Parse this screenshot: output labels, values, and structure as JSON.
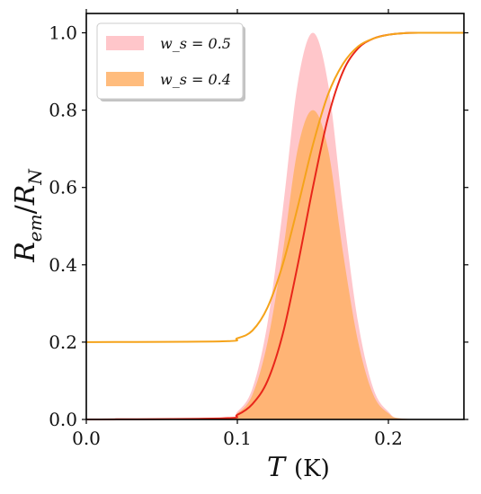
{
  "chart_data": {
    "type": "area",
    "xlabel": "T (K)",
    "ylabel": "R_em/R_N",
    "xlim": [
      0.0,
      0.25
    ],
    "ylim": [
      0.0,
      1.05
    ],
    "x_ticks": [
      "0.0",
      "0.1",
      "0.2"
    ],
    "y_ticks": [
      "0.0",
      "0.2",
      "0.4",
      "0.6",
      "0.8",
      "1.0"
    ],
    "grid": false,
    "legend_position": "top-left",
    "series": [
      {
        "name": "w_s = 0.5",
        "kind": "area",
        "color": "#ffb3b8",
        "x": [
          0.0,
          0.09,
          0.1,
          0.11,
          0.12,
          0.13,
          0.14,
          0.15,
          0.16,
          0.17,
          0.18,
          0.19,
          0.2,
          0.21,
          0.25
        ],
        "values": [
          0.0,
          0.002,
          0.02,
          0.08,
          0.25,
          0.54,
          0.87,
          1.0,
          0.87,
          0.54,
          0.25,
          0.08,
          0.02,
          0.002,
          0.0
        ]
      },
      {
        "name": "w_s = 0.4",
        "kind": "area",
        "color": "#ffb066",
        "x": [
          0.0,
          0.09,
          0.1,
          0.11,
          0.12,
          0.13,
          0.14,
          0.15,
          0.16,
          0.17,
          0.18,
          0.19,
          0.2,
          0.21,
          0.25
        ],
        "values": [
          0.0,
          0.002,
          0.016,
          0.064,
          0.2,
          0.43,
          0.7,
          0.8,
          0.7,
          0.43,
          0.2,
          0.064,
          0.016,
          0.002,
          0.0
        ]
      },
      {
        "kind": "line",
        "color": "#e8261a",
        "x": [
          0.0,
          0.09,
          0.1,
          0.11,
          0.12,
          0.13,
          0.14,
          0.15,
          0.16,
          0.17,
          0.18,
          0.19,
          0.2,
          0.21,
          0.22,
          0.25
        ],
        "values": [
          0.0,
          0.003,
          0.012,
          0.04,
          0.1,
          0.22,
          0.4,
          0.6,
          0.78,
          0.9,
          0.96,
          0.985,
          0.995,
          0.999,
          1.0,
          1.0
        ]
      },
      {
        "kind": "line",
        "color": "#f5a31a",
        "x": [
          0.0,
          0.09,
          0.1,
          0.11,
          0.12,
          0.13,
          0.14,
          0.15,
          0.16,
          0.17,
          0.18,
          0.19,
          0.2,
          0.21,
          0.22,
          0.25
        ],
        "values": [
          0.2,
          0.202,
          0.21,
          0.23,
          0.29,
          0.4,
          0.55,
          0.71,
          0.84,
          0.92,
          0.965,
          0.985,
          0.995,
          0.999,
          1.0,
          1.0
        ]
      }
    ]
  }
}
